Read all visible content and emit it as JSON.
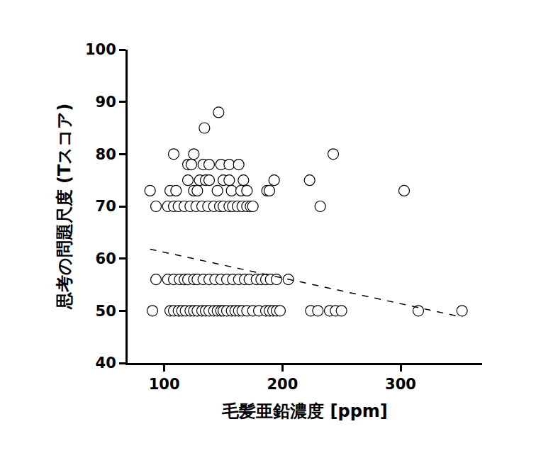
{
  "chart_data": {
    "type": "scatter",
    "x_label": "毛髪亜鉛濃度 [ppm]",
    "y_label": "思考の問題尺度 (Tスコア)",
    "xlim": [
      69,
      369
    ],
    "xticks": [
      100,
      200,
      300
    ],
    "ylim": [
      40,
      100
    ],
    "yticks": [
      40,
      50,
      60,
      70,
      80,
      90,
      100
    ],
    "grid": false,
    "series": [
      {
        "type": "scatter",
        "marker": "circle",
        "color": "#ffffff",
        "x": [
          90,
          105,
          108,
          112,
          115,
          118,
          122,
          125,
          128,
          132,
          135,
          138,
          142,
          145,
          148,
          150,
          153,
          157,
          160,
          163,
          166,
          170,
          175,
          180,
          186,
          189,
          192,
          195,
          198,
          224,
          230,
          240,
          245,
          250,
          315,
          352,
          93,
          103,
          108,
          113,
          117,
          120,
          125,
          128,
          133,
          138,
          143,
          148,
          153,
          158,
          163,
          168,
          172,
          178,
          182,
          186,
          190,
          195,
          205,
          93,
          103,
          108,
          112,
          117,
          122,
          127,
          132,
          137,
          142,
          147,
          150,
          155,
          158,
          162,
          166,
          170,
          173,
          175,
          232,
          88,
          105,
          110,
          125,
          128,
          145,
          157,
          165,
          170,
          187,
          189,
          303,
          120,
          130,
          135,
          138,
          150,
          155,
          167,
          193,
          223,
          120,
          123,
          133,
          138,
          148,
          155,
          163,
          108,
          125,
          243,
          134,
          146
        ],
        "values": [
          50,
          50,
          50,
          50,
          50,
          50,
          50,
          50,
          50,
          50,
          50,
          50,
          50,
          50,
          50,
          50,
          50,
          50,
          50,
          50,
          50,
          50,
          50,
          50,
          50,
          50,
          50,
          50,
          50,
          50,
          50,
          50,
          50,
          50,
          50,
          50,
          56,
          56,
          56,
          56,
          56,
          56,
          56,
          56,
          56,
          56,
          56,
          56,
          56,
          56,
          56,
          56,
          56,
          56,
          56,
          56,
          56,
          56,
          56,
          70,
          70,
          70,
          70,
          70,
          70,
          70,
          70,
          70,
          70,
          70,
          70,
          70,
          70,
          70,
          70,
          70,
          70,
          70,
          70,
          73,
          73,
          73,
          73,
          73,
          73,
          73,
          73,
          73,
          73,
          73,
          73,
          75,
          75,
          75,
          75,
          75,
          75,
          75,
          75,
          75,
          78,
          78,
          78,
          78,
          78,
          78,
          78,
          80,
          80,
          80,
          85,
          88
        ]
      },
      {
        "type": "line",
        "line_style": "dashed",
        "color": "#000000",
        "x": [
          88,
          352
        ],
        "values": [
          61.8,
          48.8
        ]
      }
    ]
  }
}
